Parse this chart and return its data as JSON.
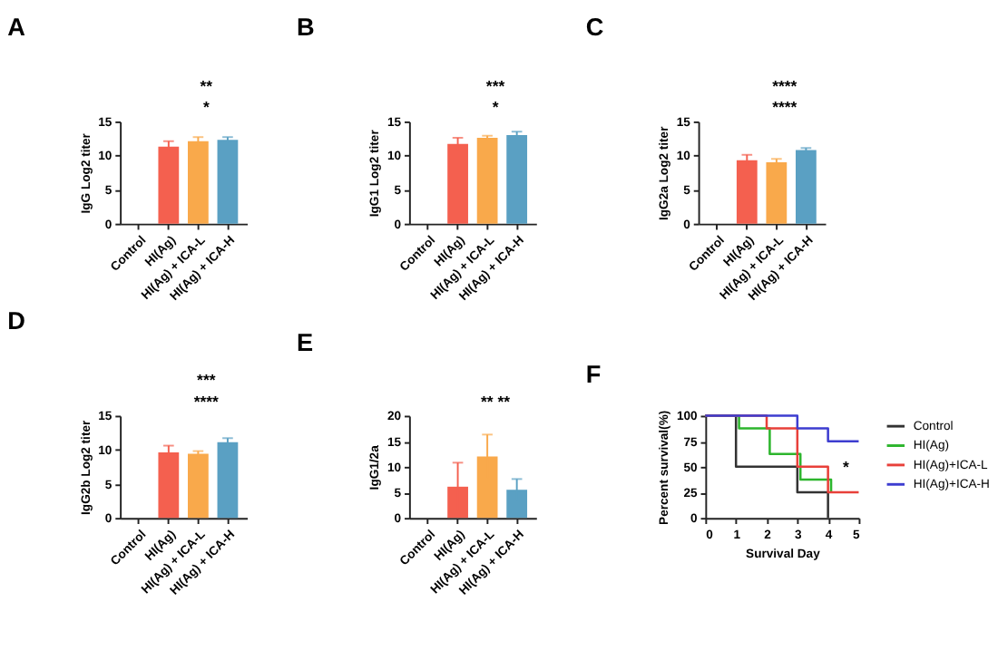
{
  "chart_data": [
    {
      "type": "bar",
      "title": "A",
      "ylabel": "IgG Log2 titer",
      "categories": [
        "Control",
        "HI(Ag)",
        "HI(Ag) + ICA-L",
        "HI(Ag) + ICA-H"
      ],
      "values": [
        null,
        11.3,
        12.1,
        12.3
      ],
      "errors": [
        null,
        0.8,
        0.6,
        0.4
      ],
      "colors": [
        "#f4604f",
        "#f4604f",
        "#f9a94b",
        "#5aa0c3"
      ],
      "ylim": [
        0,
        15
      ],
      "yticks": [
        0,
        5,
        10,
        15
      ],
      "annotations": [
        "**",
        "*"
      ]
    },
    {
      "type": "bar",
      "title": "B",
      "ylabel": "IgG1 Log2 titer",
      "categories": [
        "Control",
        "HI(Ag)",
        "HI(Ag) + ICA-L",
        "HI(Ag) + ICA-H"
      ],
      "values": [
        null,
        11.7,
        12.6,
        13.0
      ],
      "errors": [
        null,
        0.9,
        0.3,
        0.5
      ],
      "colors": [
        "#f4604f",
        "#f4604f",
        "#f9a94b",
        "#5aa0c3"
      ],
      "ylim": [
        0,
        15
      ],
      "yticks": [
        0,
        5,
        10,
        15
      ],
      "annotations": [
        "***",
        "*"
      ]
    },
    {
      "type": "bar",
      "title": "C",
      "ylabel": "IgG2a Log2 titer",
      "categories": [
        "Control",
        "HI(Ag)",
        "HI(Ag) + ICA-L",
        "HI(Ag) + ICA-H"
      ],
      "values": [
        null,
        9.3,
        9.0,
        10.8
      ],
      "errors": [
        null,
        0.8,
        0.5,
        0.3
      ],
      "colors": [
        "#f4604f",
        "#f4604f",
        "#f9a94b",
        "#5aa0c3"
      ],
      "ylim": [
        0,
        15
      ],
      "yticks": [
        0,
        5,
        10,
        15
      ],
      "annotations": [
        "****",
        "****"
      ]
    },
    {
      "type": "bar",
      "title": "D",
      "ylabel": "IgG2b Log2 titer",
      "categories": [
        "Control",
        "HI(Ag)",
        "HI(Ag) + ICA-L",
        "HI(Ag) + ICA-H"
      ],
      "values": [
        null,
        9.6,
        9.4,
        11.1
      ],
      "errors": [
        null,
        1.0,
        0.4,
        0.6
      ],
      "colors": [
        "#f4604f",
        "#f4604f",
        "#f9a94b",
        "#5aa0c3"
      ],
      "ylim": [
        0,
        15
      ],
      "yticks": [
        0,
        5,
        10,
        15
      ],
      "annotations": [
        "***",
        "****"
      ]
    },
    {
      "type": "bar",
      "title": "E",
      "ylabel": "IgG1/2a",
      "categories": [
        "Control",
        "HI(Ag)",
        "HI(Ag) + ICA-L",
        "HI(Ag) + ICA-H"
      ],
      "values": [
        null,
        6.1,
        12.0,
        5.5
      ],
      "errors": [
        null,
        4.7,
        4.3,
        2.1
      ],
      "colors": [
        "#f4604f",
        "#f4604f",
        "#f9a94b",
        "#5aa0c3"
      ],
      "ylim": [
        0,
        20
      ],
      "yticks": [
        0,
        5,
        10,
        15,
        20
      ],
      "annotations": [
        "**  **"
      ]
    },
    {
      "type": "step",
      "title": "F",
      "xlabel": "Survival Day",
      "ylabel": "Percent survival(%)",
      "xlim": [
        0,
        5
      ],
      "xticks": [
        0,
        1,
        2,
        3,
        4,
        5
      ],
      "ylim": [
        0,
        100
      ],
      "yticks": [
        0,
        25,
        50,
        75,
        100
      ],
      "legend": "right",
      "annotations": [
        "*"
      ],
      "series": [
        {
          "name": "Control",
          "color": "#333333",
          "x": [
            0,
            1,
            3,
            4
          ],
          "values": [
            100,
            50,
            25,
            0
          ]
        },
        {
          "name": "HI(Ag)",
          "color": "#2db52d",
          "x": [
            0,
            1.1,
            2.1,
            3.1,
            4.1
          ],
          "values": [
            100,
            87.5,
            62.5,
            37.5,
            25
          ]
        },
        {
          "name": "HI(Ag)+ICA-L",
          "color": "#e8403a",
          "x": [
            0,
            2,
            3,
            4,
            5
          ],
          "values": [
            100,
            87.5,
            50,
            25,
            25
          ]
        },
        {
          "name": "HI(Ag)+ICA-H",
          "color": "#3d3dd0",
          "x": [
            0,
            3,
            4,
            5
          ],
          "values": [
            100,
            87.5,
            75,
            75
          ]
        }
      ]
    }
  ]
}
